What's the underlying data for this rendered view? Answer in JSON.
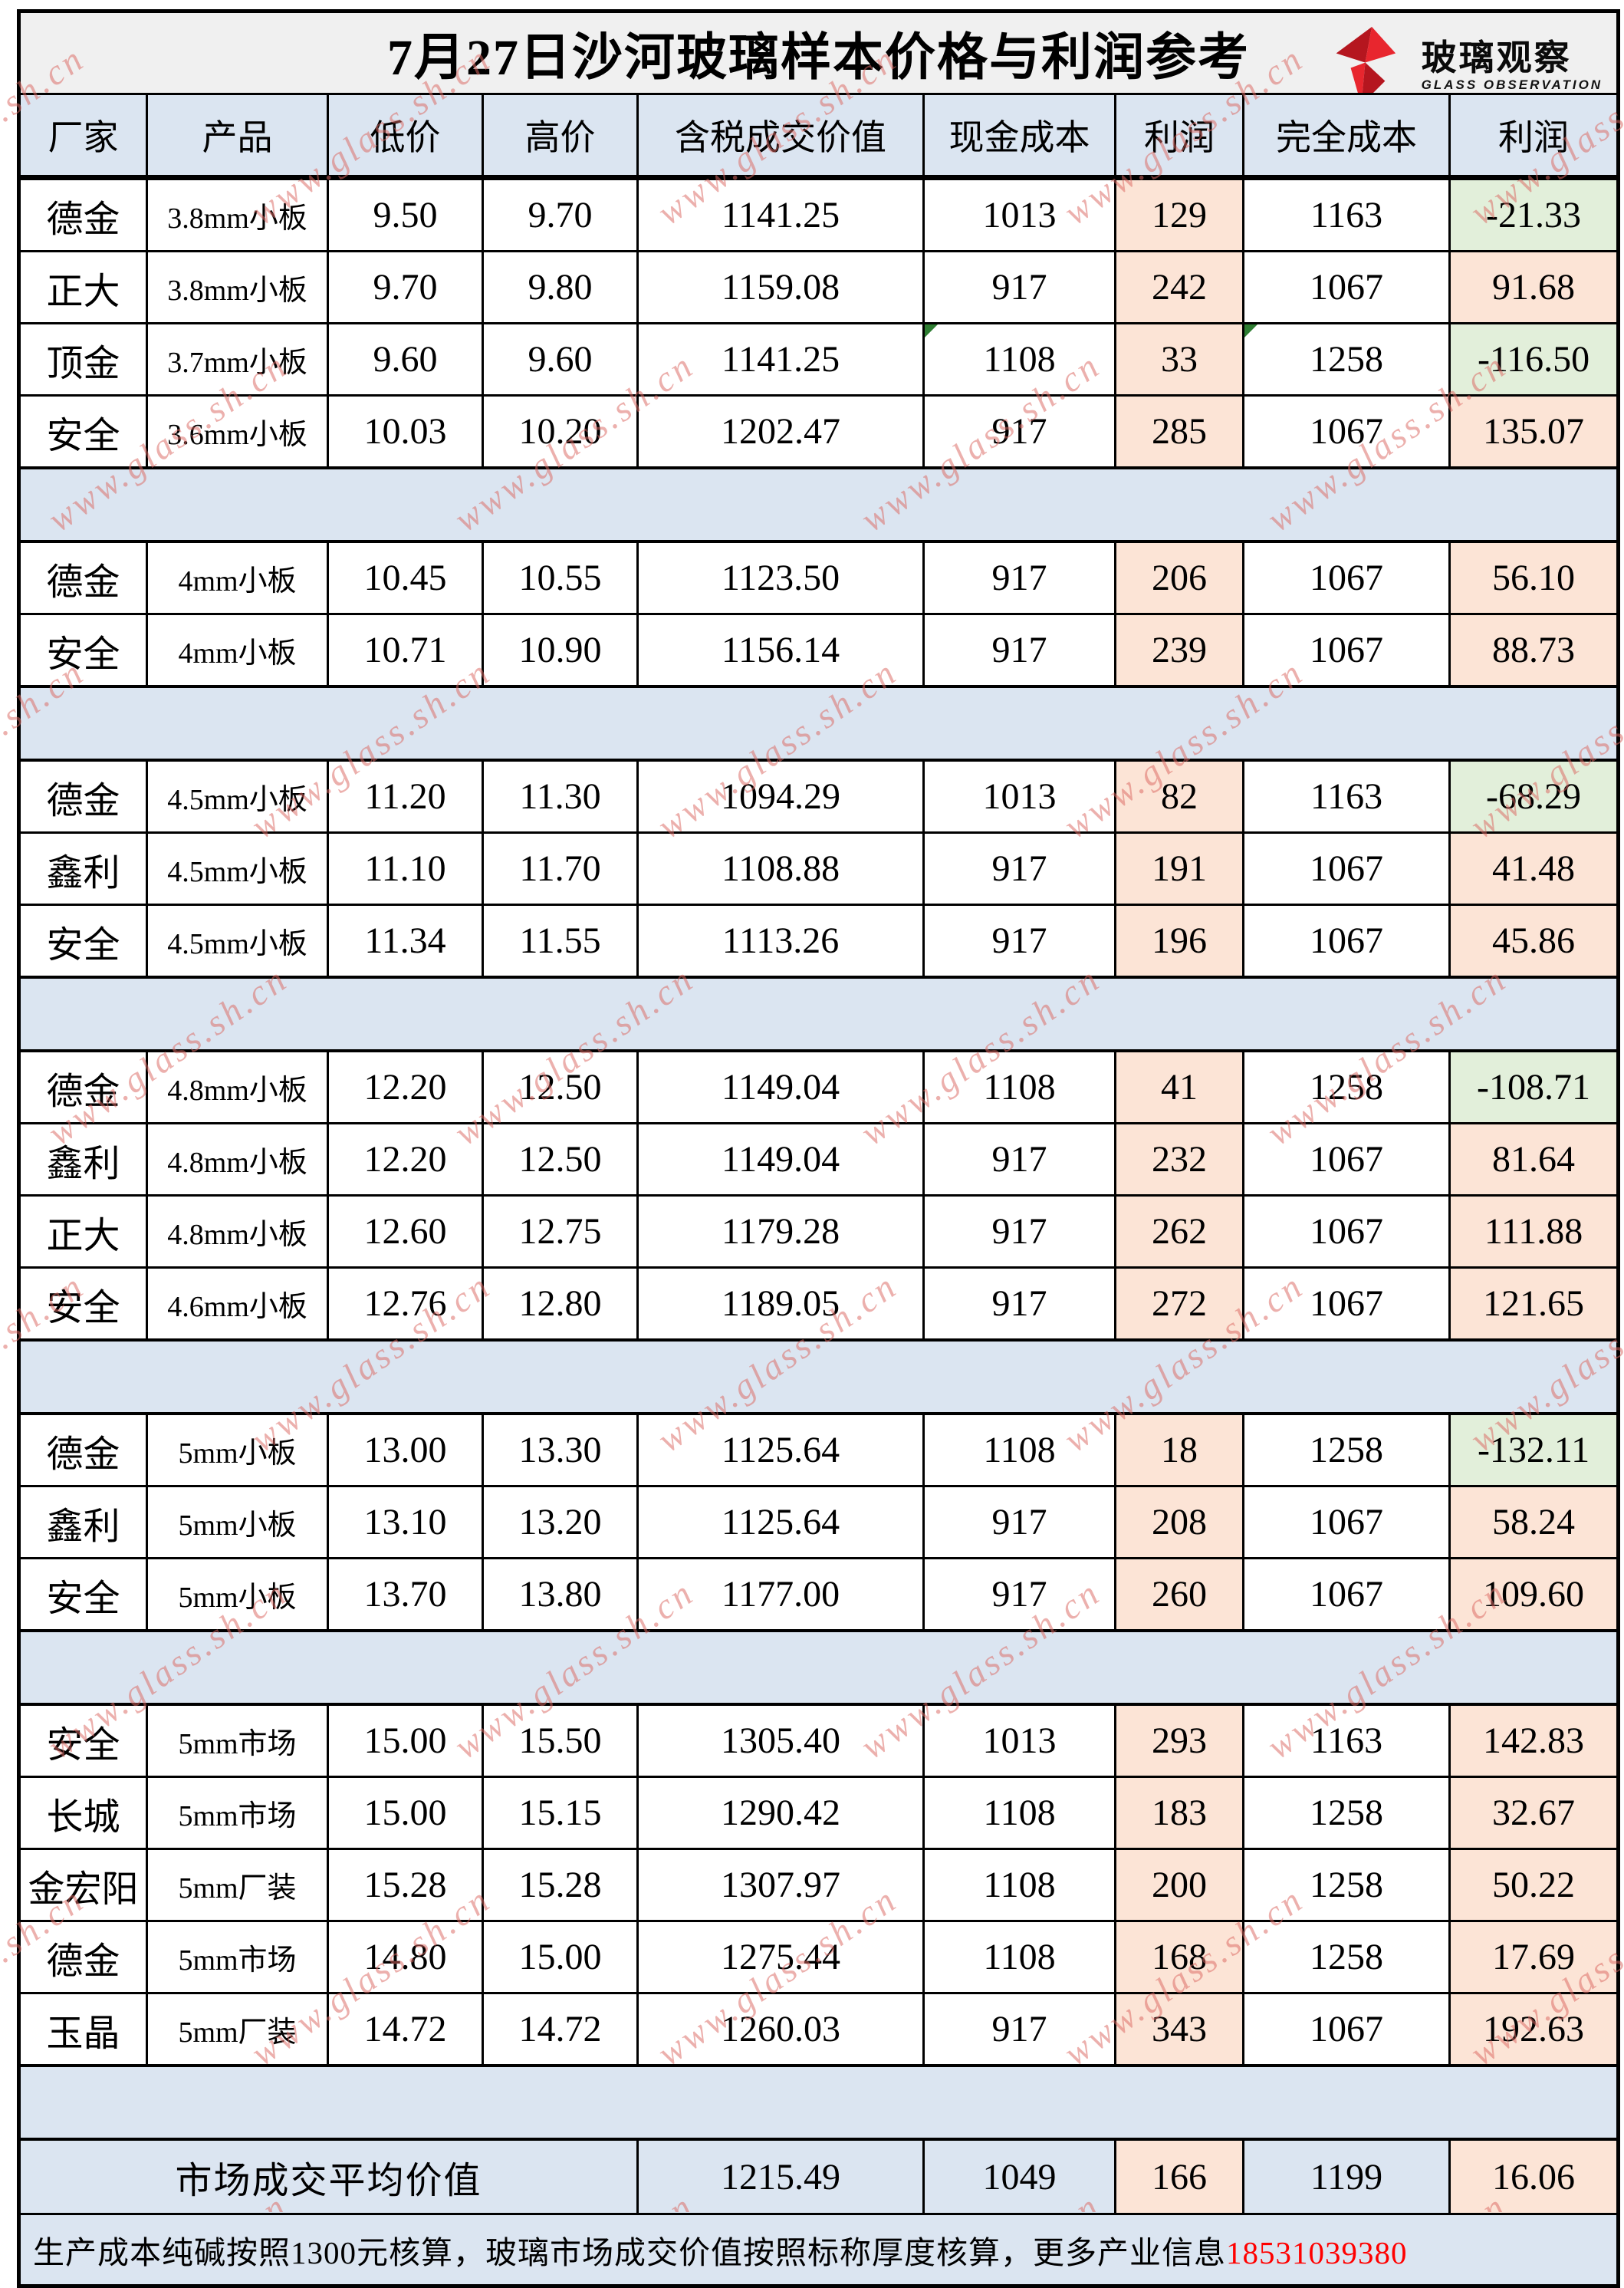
{
  "title": "7月27日沙河玻璃样本价格与利润参考",
  "logo": {
    "cn": "玻璃观察",
    "en": "GLASS OBSERVATION"
  },
  "watermark": "www.glass.sh.cn",
  "columns": [
    "厂家",
    "产品",
    "低价",
    "高价",
    "含税成交价值",
    "现金成本",
    "利润",
    "完全成本",
    "利润"
  ],
  "colors": {
    "header_blue": "#dbe5f1",
    "separator_blue": "#dbe5f1",
    "profit_peach": "#fce4d6",
    "loss_green": "#e2efda",
    "title_gray": "#f0f0f0",
    "logo_red": "#e8262e",
    "phone_red": "#ff0000",
    "watermark_pink": "#db6861"
  },
  "sections": [
    {
      "rows": [
        {
          "factory": "德金",
          "product": "3.8mm小板",
          "low": "9.50",
          "high": "9.70",
          "value": "1141.25",
          "cash_cost": "1013",
          "profit": "129",
          "full_cost": "1163",
          "profit2": "-21.33"
        },
        {
          "factory": "正大",
          "product": "3.8mm小板",
          "low": "9.70",
          "high": "9.80",
          "value": "1159.08",
          "cash_cost": "917",
          "profit": "242",
          "full_cost": "1067",
          "profit2": "91.68"
        },
        {
          "factory": "顶金",
          "product": "3.7mm小板",
          "low": "9.60",
          "high": "9.60",
          "value": "1141.25",
          "cash_cost": "1108",
          "profit": "33",
          "full_cost": "1258",
          "profit2": "-116.50",
          "markers": [
            "cash_cost",
            "full_cost"
          ]
        },
        {
          "factory": "安全",
          "product": "3.6mm小板",
          "low": "10.03",
          "high": "10.20",
          "value": "1202.47",
          "cash_cost": "917",
          "profit": "285",
          "full_cost": "1067",
          "profit2": "135.07"
        }
      ]
    },
    {
      "rows": [
        {
          "factory": "德金",
          "product": "4mm小板",
          "low": "10.45",
          "high": "10.55",
          "value": "1123.50",
          "cash_cost": "917",
          "profit": "206",
          "full_cost": "1067",
          "profit2": "56.10"
        },
        {
          "factory": "安全",
          "product": "4mm小板",
          "low": "10.71",
          "high": "10.90",
          "value": "1156.14",
          "cash_cost": "917",
          "profit": "239",
          "full_cost": "1067",
          "profit2": "88.73"
        }
      ]
    },
    {
      "rows": [
        {
          "factory": "德金",
          "product": "4.5mm小板",
          "low": "11.20",
          "high": "11.30",
          "value": "1094.29",
          "cash_cost": "1013",
          "profit": "82",
          "full_cost": "1163",
          "profit2": "-68.29"
        },
        {
          "factory": "鑫利",
          "product": "4.5mm小板",
          "low": "11.10",
          "high": "11.70",
          "value": "1108.88",
          "cash_cost": "917",
          "profit": "191",
          "full_cost": "1067",
          "profit2": "41.48"
        },
        {
          "factory": "安全",
          "product": "4.5mm小板",
          "low": "11.34",
          "high": "11.55",
          "value": "1113.26",
          "cash_cost": "917",
          "profit": "196",
          "full_cost": "1067",
          "profit2": "45.86"
        }
      ]
    },
    {
      "rows": [
        {
          "factory": "德金",
          "product": "4.8mm小板",
          "low": "12.20",
          "high": "12.50",
          "value": "1149.04",
          "cash_cost": "1108",
          "profit": "41",
          "full_cost": "1258",
          "profit2": "-108.71"
        },
        {
          "factory": "鑫利",
          "product": "4.8mm小板",
          "low": "12.20",
          "high": "12.50",
          "value": "1149.04",
          "cash_cost": "917",
          "profit": "232",
          "full_cost": "1067",
          "profit2": "81.64"
        },
        {
          "factory": "正大",
          "product": "4.8mm小板",
          "low": "12.60",
          "high": "12.75",
          "value": "1179.28",
          "cash_cost": "917",
          "profit": "262",
          "full_cost": "1067",
          "profit2": "111.88"
        },
        {
          "factory": "安全",
          "product": "4.6mm小板",
          "low": "12.76",
          "high": "12.80",
          "value": "1189.05",
          "cash_cost": "917",
          "profit": "272",
          "full_cost": "1067",
          "profit2": "121.65"
        }
      ]
    },
    {
      "rows": [
        {
          "factory": "德金",
          "product": "5mm小板",
          "low": "13.00",
          "high": "13.30",
          "value": "1125.64",
          "cash_cost": "1108",
          "profit": "18",
          "full_cost": "1258",
          "profit2": "-132.11"
        },
        {
          "factory": "鑫利",
          "product": "5mm小板",
          "low": "13.10",
          "high": "13.20",
          "value": "1125.64",
          "cash_cost": "917",
          "profit": "208",
          "full_cost": "1067",
          "profit2": "58.24"
        },
        {
          "factory": "安全",
          "product": "5mm小板",
          "low": "13.70",
          "high": "13.80",
          "value": "1177.00",
          "cash_cost": "917",
          "profit": "260",
          "full_cost": "1067",
          "profit2": "109.60"
        }
      ]
    },
    {
      "rows": [
        {
          "factory": "安全",
          "product": "5mm市场",
          "low": "15.00",
          "high": "15.50",
          "value": "1305.40",
          "cash_cost": "1013",
          "profit": "293",
          "full_cost": "1163",
          "profit2": "142.83"
        },
        {
          "factory": "长城",
          "product": "5mm市场",
          "low": "15.00",
          "high": "15.15",
          "value": "1290.42",
          "cash_cost": "1108",
          "profit": "183",
          "full_cost": "1258",
          "profit2": "32.67"
        },
        {
          "factory": "金宏阳",
          "product": "5mm厂装",
          "low": "15.28",
          "high": "15.28",
          "value": "1307.97",
          "cash_cost": "1108",
          "profit": "200",
          "full_cost": "1258",
          "profit2": "50.22"
        },
        {
          "factory": "德金",
          "product": "5mm市场",
          "low": "14.80",
          "high": "15.00",
          "value": "1275.44",
          "cash_cost": "1108",
          "profit": "168",
          "full_cost": "1258",
          "profit2": "17.69"
        },
        {
          "factory": "玉晶",
          "product": "5mm厂装",
          "low": "14.72",
          "high": "14.72",
          "value": "1260.03",
          "cash_cost": "917",
          "profit": "343",
          "full_cost": "1067",
          "profit2": "192.63"
        }
      ]
    }
  ],
  "summary": {
    "label": "市场成交平均价值",
    "value": "1215.49",
    "cash_cost": "1049",
    "profit": "166",
    "full_cost": "1199",
    "profit2": "16.06"
  },
  "footer": {
    "text": "生产成本纯碱按照1300元核算，玻璃市场成交价值按照标称厚度核算，更多产业信息",
    "phone": "18531039380"
  }
}
